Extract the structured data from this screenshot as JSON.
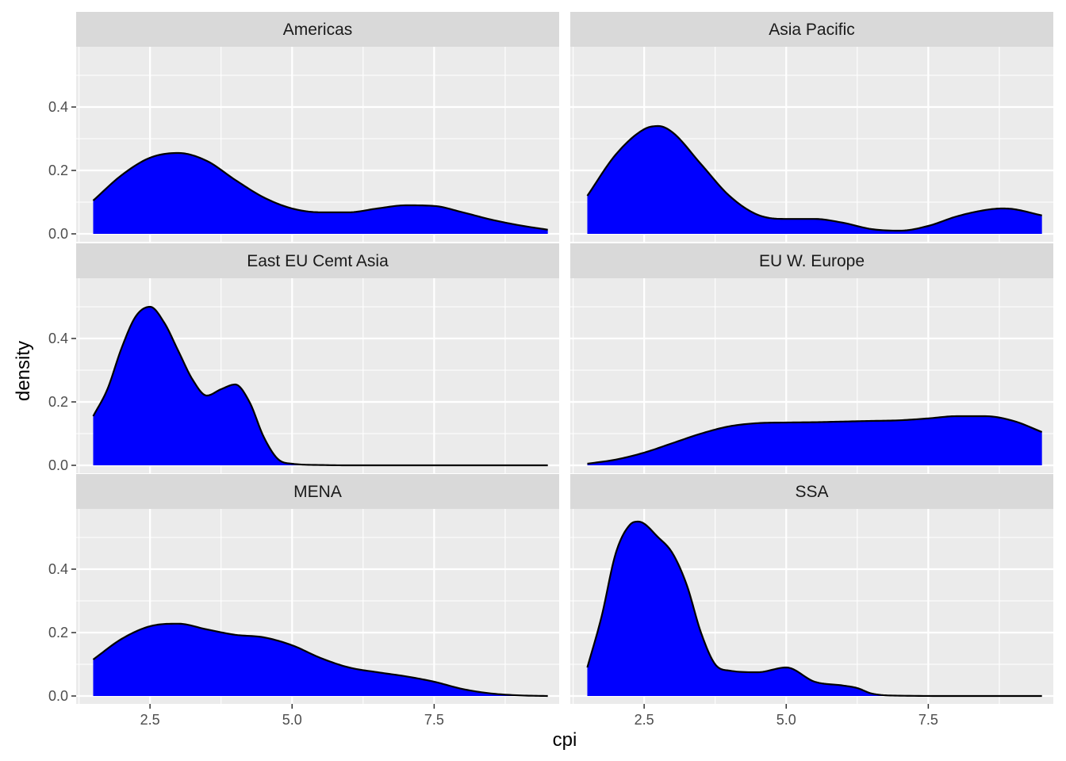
{
  "chart_data": {
    "type": "area",
    "subtype": "faceted density plot",
    "xlabel": "cpi",
    "ylabel": "density",
    "xlim": [
      1.2,
      9.7
    ],
    "ylim": [
      -0.025,
      0.59
    ],
    "x_ticks": [
      2.5,
      5.0,
      7.5
    ],
    "x_tick_labels": [
      "2.5",
      "5.0",
      "7.5"
    ],
    "y_ticks": [
      0.0,
      0.2,
      0.4
    ],
    "y_tick_labels": [
      "0.0",
      "0.2",
      "0.4"
    ],
    "grid": true,
    "legend": "none",
    "layout": {
      "rows": 3,
      "cols": 2
    },
    "colors": {
      "fill": "#0000ff",
      "outline": "#000000",
      "panel_background": "#ebebeb",
      "grid": "#ffffff",
      "strip_background": "#d9d9d9"
    },
    "facets": [
      {
        "name": "Americas",
        "x": [
          1.5,
          2.0,
          2.5,
          3.0,
          3.5,
          4.0,
          4.5,
          5.0,
          5.5,
          6.0,
          6.5,
          7.0,
          7.5,
          8.0,
          8.5,
          9.0,
          9.5
        ],
        "y": [
          0.105,
          0.185,
          0.24,
          0.255,
          0.23,
          0.17,
          0.115,
          0.08,
          0.068,
          0.068,
          0.08,
          0.09,
          0.088,
          0.068,
          0.045,
          0.027,
          0.013
        ]
      },
      {
        "name": "Asia Pacific",
        "x": [
          1.5,
          2.0,
          2.5,
          2.75,
          3.0,
          3.5,
          4.0,
          4.5,
          5.0,
          5.5,
          6.0,
          6.5,
          7.0,
          7.5,
          8.0,
          8.5,
          8.8,
          9.0,
          9.5
        ],
        "y": [
          0.12,
          0.25,
          0.33,
          0.34,
          0.32,
          0.22,
          0.12,
          0.06,
          0.047,
          0.047,
          0.035,
          0.015,
          0.01,
          0.025,
          0.055,
          0.075,
          0.08,
          0.078,
          0.058
        ]
      },
      {
        "name": "East EU Cemt Asia",
        "x": [
          1.5,
          1.75,
          2.0,
          2.25,
          2.5,
          2.75,
          3.0,
          3.25,
          3.5,
          3.75,
          4.0,
          4.25,
          4.5,
          4.75,
          5.0,
          5.5,
          6.0,
          7.0,
          8.0,
          9.5
        ],
        "y": [
          0.155,
          0.24,
          0.37,
          0.47,
          0.5,
          0.45,
          0.36,
          0.27,
          0.22,
          0.24,
          0.255,
          0.2,
          0.09,
          0.02,
          0.005,
          0.001,
          0.0,
          0.0,
          0.0,
          0.0
        ]
      },
      {
        "name": "EU W. Europe",
        "x": [
          1.5,
          2.0,
          2.5,
          3.0,
          3.5,
          4.0,
          4.5,
          5.0,
          5.5,
          6.0,
          6.5,
          7.0,
          7.5,
          8.0,
          8.5,
          9.0,
          9.5
        ],
        "y": [
          0.005,
          0.018,
          0.04,
          0.07,
          0.1,
          0.123,
          0.133,
          0.135,
          0.136,
          0.138,
          0.14,
          0.142,
          0.148,
          0.155,
          0.155,
          0.14,
          0.105
        ]
      },
      {
        "name": "MENA",
        "x": [
          1.5,
          2.0,
          2.5,
          3.0,
          3.5,
          4.0,
          4.5,
          5.0,
          5.5,
          6.0,
          6.5,
          7.0,
          7.5,
          8.0,
          8.5,
          9.0,
          9.5
        ],
        "y": [
          0.115,
          0.18,
          0.22,
          0.228,
          0.21,
          0.193,
          0.185,
          0.16,
          0.12,
          0.09,
          0.075,
          0.062,
          0.045,
          0.022,
          0.008,
          0.002,
          0.0
        ]
      },
      {
        "name": "SSA",
        "x": [
          1.5,
          1.75,
          2.0,
          2.25,
          2.4,
          2.75,
          3.0,
          3.25,
          3.5,
          3.75,
          4.0,
          4.5,
          5.0,
          5.5,
          6.0,
          6.25,
          6.5,
          7.0,
          8.0,
          9.5
        ],
        "y": [
          0.09,
          0.25,
          0.45,
          0.54,
          0.55,
          0.5,
          0.45,
          0.35,
          0.2,
          0.1,
          0.08,
          0.075,
          0.09,
          0.045,
          0.033,
          0.025,
          0.008,
          0.001,
          0.0,
          0.0
        ]
      }
    ]
  }
}
